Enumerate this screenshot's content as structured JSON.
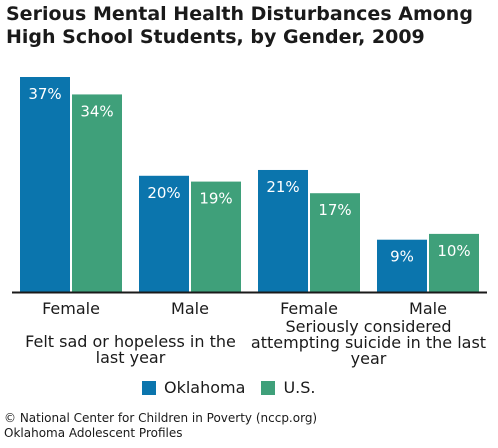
{
  "chart_data": {
    "type": "bar",
    "title": "Serious Mental Health Disturbances Among High School Students, by Gender, 2009",
    "categories": [
      "Female",
      "Male",
      "Female",
      "Male"
    ],
    "groups": [
      {
        "label": "Felt sad or hopeless in the last year",
        "categories": [
          "Female",
          "Male"
        ]
      },
      {
        "label": "Seriously considered attempting suicide in the last year",
        "categories": [
          "Female",
          "Male"
        ]
      }
    ],
    "series": [
      {
        "name": "Oklahoma",
        "values": [
          37,
          20,
          21,
          9
        ],
        "labels": [
          "37%",
          "20%",
          "21%",
          "9%"
        ],
        "color": "#0b75ad"
      },
      {
        "name": "U.S.",
        "values": [
          34,
          19,
          17,
          10
        ],
        "labels": [
          "34%",
          "19%",
          "17%",
          "10%"
        ],
        "color": "#3fa07a"
      }
    ],
    "ylim": [
      0,
      37
    ],
    "unit": "%",
    "grid": false,
    "legend_position": "bottom"
  },
  "credit": {
    "line1": "© National Center for Children in Poverty (nccp.org)",
    "line2": "Oklahoma Adolescent Profiles"
  }
}
